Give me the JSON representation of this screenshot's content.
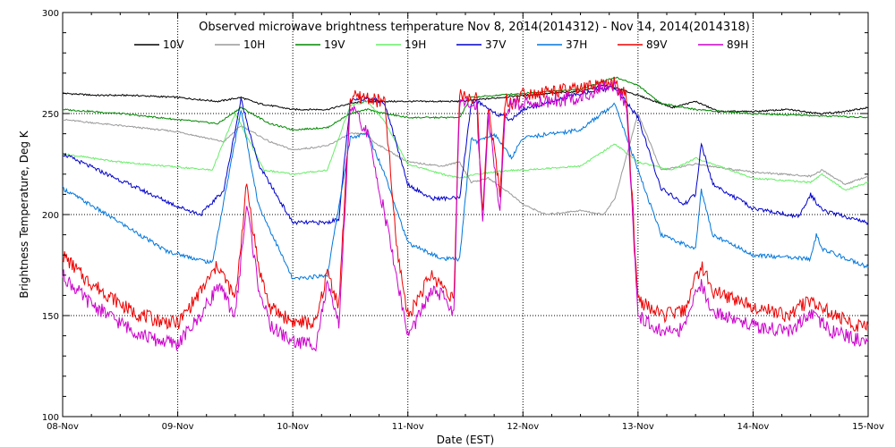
{
  "chart_data": {
    "type": "line",
    "title": "Observed microwave brightness temperature Nov  8, 2014(2014312) - Nov 14, 2014(2014318)",
    "xlabel": "Date (EST)",
    "ylabel": "Brightness Temperature, Deg K",
    "xlim": [
      0,
      7
    ],
    "ylim": [
      100,
      300
    ],
    "x_tick_labels": [
      "08-Nov",
      "09-Nov",
      "10-Nov",
      "11-Nov",
      "12-Nov",
      "13-Nov",
      "14-Nov",
      "15-Nov"
    ],
    "y_ticks": [
      100,
      150,
      200,
      250,
      300
    ],
    "grid": "dotted",
    "legend_position": "top",
    "series": [
      {
        "name": "10V",
        "color": "#000000",
        "points": [
          [
            0,
            260
          ],
          [
            0.3,
            259
          ],
          [
            0.6,
            259
          ],
          [
            1.0,
            258
          ],
          [
            1.35,
            256
          ],
          [
            1.55,
            258
          ],
          [
            1.7,
            255
          ],
          [
            2.0,
            252
          ],
          [
            2.3,
            252
          ],
          [
            2.5,
            255
          ],
          [
            2.65,
            256
          ],
          [
            3.0,
            256
          ],
          [
            3.3,
            256
          ],
          [
            3.45,
            256
          ],
          [
            4.0,
            259
          ],
          [
            4.5,
            261
          ],
          [
            4.7,
            264
          ],
          [
            4.85,
            262
          ],
          [
            5.1,
            257
          ],
          [
            5.3,
            253
          ],
          [
            5.5,
            256
          ],
          [
            5.7,
            251
          ],
          [
            6.0,
            251
          ],
          [
            6.3,
            252
          ],
          [
            6.6,
            250
          ],
          [
            6.8,
            251
          ],
          [
            7.0,
            253
          ]
        ]
      },
      {
        "name": "10H",
        "color": "#999999",
        "points": [
          [
            0,
            247
          ],
          [
            0.5,
            244
          ],
          [
            1.0,
            241
          ],
          [
            1.4,
            236
          ],
          [
            1.55,
            244
          ],
          [
            1.8,
            236
          ],
          [
            2.0,
            232
          ],
          [
            2.3,
            234
          ],
          [
            2.5,
            240
          ],
          [
            2.65,
            240
          ],
          [
            2.7,
            236
          ],
          [
            3.0,
            226
          ],
          [
            3.3,
            224
          ],
          [
            3.45,
            226
          ],
          [
            3.55,
            216
          ],
          [
            3.7,
            218
          ],
          [
            3.9,
            210
          ],
          [
            4.0,
            205
          ],
          [
            4.2,
            200
          ],
          [
            4.5,
            202
          ],
          [
            4.7,
            200
          ],
          [
            4.8,
            208
          ],
          [
            5.0,
            250
          ],
          [
            5.2,
            222
          ],
          [
            5.5,
            225
          ],
          [
            6.0,
            221
          ],
          [
            6.5,
            219
          ],
          [
            6.6,
            222
          ],
          [
            6.8,
            215
          ],
          [
            7.0,
            219
          ]
        ]
      },
      {
        "name": "19V",
        "color": "#008800",
        "points": [
          [
            0,
            252
          ],
          [
            0.5,
            250
          ],
          [
            1.0,
            247
          ],
          [
            1.35,
            245
          ],
          [
            1.55,
            253
          ],
          [
            1.8,
            245
          ],
          [
            2.0,
            242
          ],
          [
            2.3,
            243
          ],
          [
            2.5,
            250
          ],
          [
            2.65,
            252
          ],
          [
            2.8,
            250
          ],
          [
            3.0,
            248
          ],
          [
            3.45,
            248
          ],
          [
            3.55,
            258
          ],
          [
            4.0,
            260
          ],
          [
            4.5,
            262
          ],
          [
            4.8,
            268
          ],
          [
            5.0,
            264
          ],
          [
            5.2,
            255
          ],
          [
            5.5,
            252
          ],
          [
            6.0,
            250
          ],
          [
            6.5,
            249
          ],
          [
            7.0,
            248
          ]
        ]
      },
      {
        "name": "19H",
        "color": "#66ee66",
        "points": [
          [
            0,
            230
          ],
          [
            0.5,
            226
          ],
          [
            0.9,
            224
          ],
          [
            1.3,
            222
          ],
          [
            1.5,
            250
          ],
          [
            1.75,
            222
          ],
          [
            2.0,
            220
          ],
          [
            2.3,
            222
          ],
          [
            2.5,
            254
          ],
          [
            2.65,
            256
          ],
          [
            2.8,
            246
          ],
          [
            3.0,
            225
          ],
          [
            3.3,
            220
          ],
          [
            3.45,
            218
          ],
          [
            3.6,
            220
          ],
          [
            3.9,
            222
          ],
          [
            4.0,
            222
          ],
          [
            4.5,
            224
          ],
          [
            4.8,
            235
          ],
          [
            5.0,
            226
          ],
          [
            5.3,
            222
          ],
          [
            5.5,
            228
          ],
          [
            6.0,
            218
          ],
          [
            6.5,
            216
          ],
          [
            6.6,
            220
          ],
          [
            6.8,
            212
          ],
          [
            7.0,
            216
          ]
        ]
      },
      {
        "name": "37V",
        "color": "#0000cc",
        "points": [
          [
            0,
            230
          ],
          [
            0.5,
            217
          ],
          [
            1.0,
            204
          ],
          [
            1.2,
            200
          ],
          [
            1.4,
            212
          ],
          [
            1.55,
            257
          ],
          [
            1.7,
            225
          ],
          [
            2.0,
            196
          ],
          [
            2.3,
            196
          ],
          [
            2.4,
            198
          ],
          [
            2.5,
            256
          ],
          [
            2.65,
            258
          ],
          [
            2.8,
            255
          ],
          [
            3.0,
            215
          ],
          [
            3.2,
            208
          ],
          [
            3.45,
            208
          ],
          [
            3.55,
            255
          ],
          [
            3.6,
            256
          ],
          [
            3.8,
            249
          ],
          [
            3.9,
            247
          ],
          [
            4.0,
            252
          ],
          [
            4.5,
            260
          ],
          [
            4.8,
            263
          ],
          [
            5.0,
            248
          ],
          [
            5.2,
            213
          ],
          [
            5.4,
            205
          ],
          [
            5.5,
            210
          ],
          [
            5.55,
            235
          ],
          [
            5.65,
            215
          ],
          [
            6.0,
            203
          ],
          [
            6.4,
            199
          ],
          [
            6.5,
            210
          ],
          [
            6.6,
            202
          ],
          [
            7.0,
            196
          ]
        ]
      },
      {
        "name": "37H",
        "color": "#0077dd",
        "points": [
          [
            0,
            213
          ],
          [
            0.5,
            196
          ],
          [
            0.9,
            182
          ],
          [
            1.3,
            176
          ],
          [
            1.55,
            252
          ],
          [
            1.7,
            205
          ],
          [
            2.0,
            168
          ],
          [
            2.3,
            170
          ],
          [
            2.5,
            238
          ],
          [
            2.65,
            240
          ],
          [
            2.8,
            220
          ],
          [
            3.0,
            186
          ],
          [
            3.3,
            178
          ],
          [
            3.45,
            178
          ],
          [
            3.55,
            238
          ],
          [
            3.6,
            236
          ],
          [
            3.75,
            240
          ],
          [
            3.9,
            228
          ],
          [
            4.0,
            238
          ],
          [
            4.5,
            242
          ],
          [
            4.8,
            255
          ],
          [
            5.0,
            222
          ],
          [
            5.2,
            190
          ],
          [
            5.5,
            183
          ],
          [
            5.55,
            212
          ],
          [
            5.65,
            190
          ],
          [
            6.0,
            180
          ],
          [
            6.5,
            178
          ],
          [
            6.55,
            190
          ],
          [
            6.6,
            183
          ],
          [
            7.0,
            174
          ]
        ]
      },
      {
        "name": "89V",
        "color": "#ee0000",
        "points": [
          [
            0,
            180
          ],
          [
            0.2,
            168
          ],
          [
            0.4,
            160
          ],
          [
            0.6,
            152
          ],
          [
            0.8,
            148
          ],
          [
            1.0,
            146
          ],
          [
            1.2,
            162
          ],
          [
            1.35,
            175
          ],
          [
            1.5,
            158
          ],
          [
            1.6,
            215
          ],
          [
            1.7,
            175
          ],
          [
            1.8,
            154
          ],
          [
            2.0,
            147
          ],
          [
            2.2,
            146
          ],
          [
            2.3,
            172
          ],
          [
            2.4,
            155
          ],
          [
            2.5,
            258
          ],
          [
            2.65,
            258
          ],
          [
            2.8,
            255
          ],
          [
            2.9,
            185
          ],
          [
            3.0,
            150
          ],
          [
            3.1,
            160
          ],
          [
            3.2,
            170
          ],
          [
            3.3,
            165
          ],
          [
            3.4,
            158
          ],
          [
            3.45,
            260
          ],
          [
            3.6,
            257
          ],
          [
            3.65,
            200
          ],
          [
            3.7,
            255
          ],
          [
            3.8,
            210
          ],
          [
            3.85,
            258
          ],
          [
            3.9,
            255
          ],
          [
            4.0,
            260
          ],
          [
            4.5,
            262
          ],
          [
            4.8,
            265
          ],
          [
            4.9,
            258
          ],
          [
            5.0,
            158
          ],
          [
            5.2,
            150
          ],
          [
            5.4,
            152
          ],
          [
            5.5,
            168
          ],
          [
            5.55,
            175
          ],
          [
            5.65,
            162
          ],
          [
            6.0,
            155
          ],
          [
            6.3,
            150
          ],
          [
            6.5,
            158
          ],
          [
            6.7,
            150
          ],
          [
            6.9,
            145
          ],
          [
            7.0,
            145
          ]
        ]
      },
      {
        "name": "89H",
        "color": "#cc00cc",
        "points": [
          [
            0,
            170
          ],
          [
            0.2,
            158
          ],
          [
            0.4,
            150
          ],
          [
            0.6,
            143
          ],
          [
            0.8,
            138
          ],
          [
            1.0,
            136
          ],
          [
            1.2,
            150
          ],
          [
            1.35,
            165
          ],
          [
            1.5,
            150
          ],
          [
            1.6,
            205
          ],
          [
            1.7,
            165
          ],
          [
            1.8,
            145
          ],
          [
            2.0,
            137
          ],
          [
            2.2,
            136
          ],
          [
            2.3,
            165
          ],
          [
            2.4,
            145
          ],
          [
            2.5,
            254
          ],
          [
            2.65,
            240
          ],
          [
            2.8,
            200
          ],
          [
            2.9,
            170
          ],
          [
            3.0,
            140
          ],
          [
            3.1,
            150
          ],
          [
            3.2,
            162
          ],
          [
            3.3,
            160
          ],
          [
            3.4,
            152
          ],
          [
            3.45,
            255
          ],
          [
            3.6,
            254
          ],
          [
            3.65,
            195
          ],
          [
            3.7,
            250
          ],
          [
            3.8,
            200
          ],
          [
            3.85,
            252
          ],
          [
            3.9,
            254
          ],
          [
            4.0,
            255
          ],
          [
            4.5,
            258
          ],
          [
            4.8,
            264
          ],
          [
            4.9,
            255
          ],
          [
            5.0,
            150
          ],
          [
            5.2,
            142
          ],
          [
            5.4,
            143
          ],
          [
            5.5,
            160
          ],
          [
            5.55,
            166
          ],
          [
            5.65,
            152
          ],
          [
            6.0,
            145
          ],
          [
            6.3,
            142
          ],
          [
            6.5,
            150
          ],
          [
            6.7,
            142
          ],
          [
            6.9,
            138
          ],
          [
            7.0,
            138
          ]
        ]
      }
    ]
  }
}
